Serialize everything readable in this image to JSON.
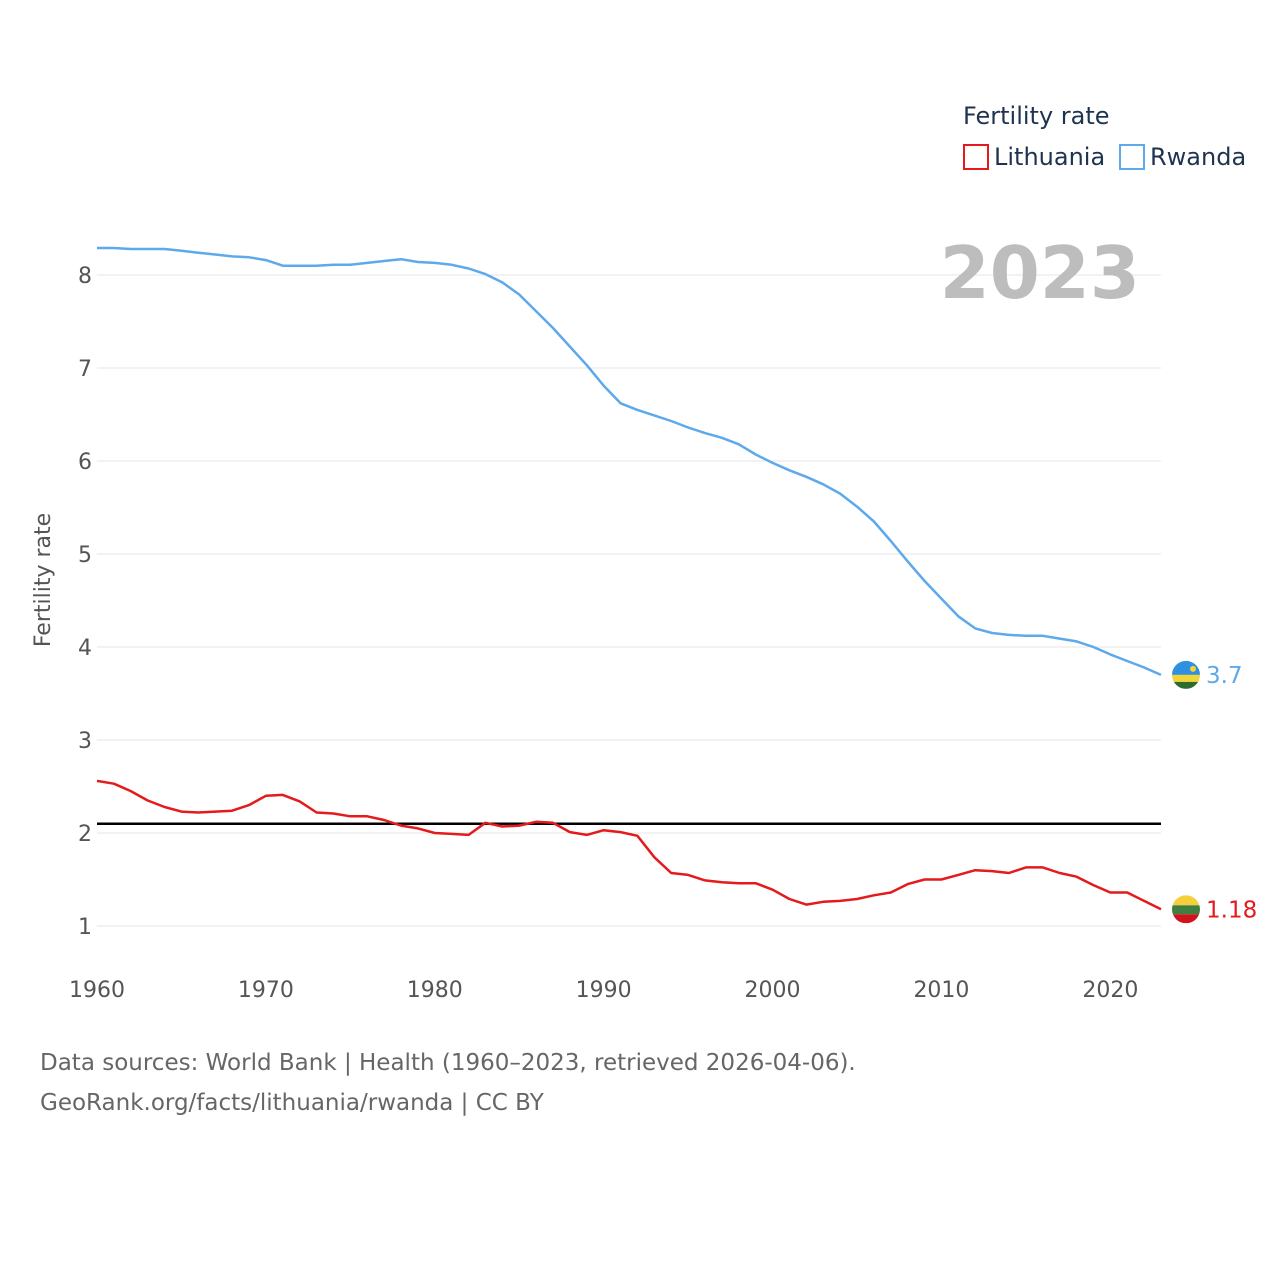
{
  "chart_data": {
    "type": "line",
    "title": "",
    "xlabel": "",
    "ylabel": "Fertility rate",
    "xlim": [
      1960,
      2023
    ],
    "ylim": [
      0.6,
      8.9
    ],
    "x_ticks": [
      1960,
      1970,
      1980,
      1990,
      2000,
      2010,
      2020
    ],
    "y_ticks": [
      1,
      2,
      3,
      4,
      5,
      6,
      7,
      8
    ],
    "grid": true,
    "year_label": "2023",
    "legend": {
      "title": "Fertility rate",
      "position": "top-right"
    },
    "reference_line": {
      "y": 2.1,
      "color": "#000000"
    },
    "x": [
      1960,
      1961,
      1962,
      1963,
      1964,
      1965,
      1966,
      1967,
      1968,
      1969,
      1970,
      1971,
      1972,
      1973,
      1974,
      1975,
      1976,
      1977,
      1978,
      1979,
      1980,
      1981,
      1982,
      1983,
      1984,
      1985,
      1986,
      1987,
      1988,
      1989,
      1990,
      1991,
      1992,
      1993,
      1994,
      1995,
      1996,
      1997,
      1998,
      1999,
      2000,
      2001,
      2002,
      2003,
      2004,
      2005,
      2006,
      2007,
      2008,
      2009,
      2010,
      2011,
      2012,
      2013,
      2014,
      2015,
      2016,
      2017,
      2018,
      2019,
      2020,
      2021,
      2022,
      2023
    ],
    "series": [
      {
        "name": "Lithuania",
        "color": "#e41a1c",
        "end_label": "1.18",
        "values": [
          2.56,
          2.53,
          2.45,
          2.35,
          2.28,
          2.23,
          2.22,
          2.23,
          2.24,
          2.3,
          2.4,
          2.41,
          2.34,
          2.22,
          2.21,
          2.18,
          2.18,
          2.14,
          2.08,
          2.05,
          2.0,
          1.99,
          1.98,
          2.11,
          2.07,
          2.08,
          2.12,
          2.11,
          2.01,
          1.98,
          2.03,
          2.01,
          1.97,
          1.74,
          1.57,
          1.55,
          1.49,
          1.47,
          1.46,
          1.46,
          1.39,
          1.29,
          1.23,
          1.26,
          1.27,
          1.29,
          1.33,
          1.36,
          1.45,
          1.5,
          1.5,
          1.55,
          1.6,
          1.59,
          1.57,
          1.63,
          1.63,
          1.57,
          1.53,
          1.44,
          1.36,
          1.36,
          1.27,
          1.18
        ]
      },
      {
        "name": "Rwanda",
        "color": "#5da9ec",
        "end_label": "3.7",
        "values": [
          8.29,
          8.29,
          8.28,
          8.28,
          8.28,
          8.26,
          8.24,
          8.22,
          8.2,
          8.19,
          8.16,
          8.1,
          8.1,
          8.1,
          8.11,
          8.11,
          8.13,
          8.15,
          8.17,
          8.14,
          8.13,
          8.11,
          8.07,
          8.01,
          7.92,
          7.79,
          7.61,
          7.43,
          7.23,
          7.03,
          6.81,
          6.62,
          6.55,
          6.49,
          6.43,
          6.36,
          6.3,
          6.25,
          6.18,
          6.07,
          5.98,
          5.9,
          5.83,
          5.75,
          5.65,
          5.51,
          5.35,
          5.14,
          4.92,
          4.71,
          4.52,
          4.33,
          4.2,
          4.15,
          4.13,
          4.12,
          4.12,
          4.09,
          4.06,
          4.0,
          3.92,
          3.85,
          3.78,
          3.7
        ]
      }
    ]
  },
  "footer": {
    "line1": "Data sources: World Bank | Health (1960–2023, retrieved 2026-04-06).",
    "line2": "GeoRank.org/facts/lithuania/rwanda | CC BY"
  }
}
